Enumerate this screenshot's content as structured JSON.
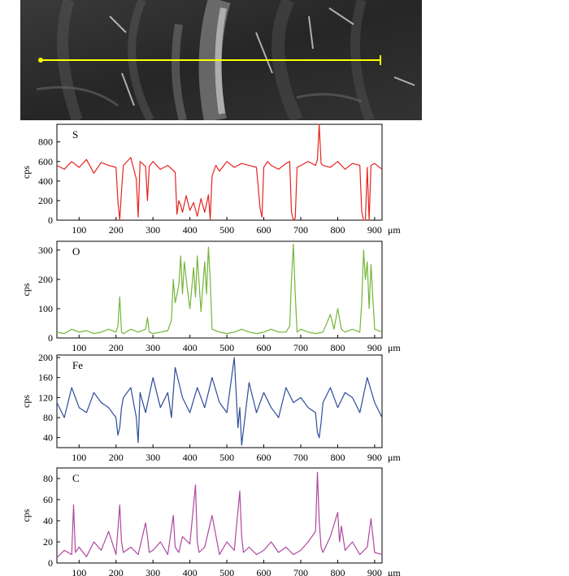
{
  "image": {
    "name": "sem-micrograph",
    "scan_line_color": "#ffff00"
  },
  "x_unit": "μm",
  "chart_data": [
    {
      "type": "line",
      "element": "S",
      "ylabel": "cps",
      "color": "#e52420",
      "xlim": [
        40,
        920
      ],
      "ylim": [
        0,
        980
      ],
      "xticks": [
        100,
        200,
        300,
        400,
        500,
        600,
        700,
        800,
        900
      ],
      "yticks": [
        0,
        200,
        400,
        600,
        800
      ],
      "x": [
        40,
        60,
        80,
        100,
        120,
        140,
        160,
        180,
        200,
        205,
        210,
        215,
        220,
        240,
        255,
        260,
        265,
        280,
        285,
        290,
        300,
        320,
        340,
        360,
        365,
        370,
        375,
        380,
        390,
        400,
        410,
        420,
        430,
        440,
        450,
        455,
        460,
        470,
        480,
        500,
        520,
        540,
        560,
        580,
        590,
        595,
        600,
        610,
        620,
        640,
        660,
        670,
        675,
        680,
        685,
        690,
        700,
        720,
        740,
        745,
        750,
        755,
        760,
        780,
        800,
        820,
        840,
        860,
        865,
        870,
        875,
        880,
        885,
        890,
        900,
        920
      ],
      "y": [
        560,
        520,
        600,
        540,
        620,
        480,
        590,
        560,
        540,
        200,
        0,
        300,
        560,
        640,
        420,
        30,
        600,
        550,
        200,
        550,
        600,
        520,
        560,
        490,
        60,
        200,
        150,
        80,
        250,
        100,
        180,
        40,
        220,
        80,
        260,
        10,
        450,
        560,
        500,
        600,
        540,
        580,
        560,
        540,
        120,
        30,
        540,
        600,
        560,
        520,
        580,
        600,
        80,
        0,
        20,
        540,
        560,
        600,
        560,
        620,
        980,
        580,
        560,
        540,
        600,
        520,
        580,
        560,
        90,
        0,
        0,
        540,
        0,
        560,
        580,
        520
      ]
    },
    {
      "type": "line",
      "element": "O",
      "ylabel": "cps",
      "color": "#74b53a",
      "xlim": [
        40,
        920
      ],
      "ylim": [
        0,
        330
      ],
      "xticks": [
        100,
        200,
        300,
        400,
        500,
        600,
        700,
        800,
        900
      ],
      "yticks": [
        0,
        100,
        200,
        300
      ],
      "x": [
        40,
        60,
        80,
        100,
        120,
        140,
        160,
        180,
        200,
        205,
        210,
        215,
        220,
        240,
        260,
        280,
        285,
        290,
        300,
        320,
        340,
        350,
        355,
        360,
        370,
        375,
        380,
        385,
        390,
        400,
        410,
        415,
        420,
        430,
        440,
        445,
        450,
        455,
        460,
        480,
        500,
        520,
        540,
        560,
        580,
        600,
        620,
        640,
        660,
        670,
        675,
        680,
        685,
        690,
        700,
        720,
        740,
        760,
        780,
        790,
        800,
        810,
        820,
        840,
        860,
        865,
        870,
        875,
        880,
        885,
        890,
        900,
        920
      ],
      "y": [
        20,
        15,
        30,
        20,
        25,
        15,
        20,
        30,
        20,
        40,
        140,
        20,
        15,
        30,
        20,
        30,
        70,
        20,
        15,
        20,
        25,
        60,
        200,
        120,
        180,
        280,
        150,
        260,
        200,
        100,
        240,
        140,
        280,
        90,
        260,
        150,
        310,
        200,
        30,
        20,
        15,
        20,
        30,
        20,
        15,
        20,
        30,
        20,
        20,
        40,
        200,
        320,
        150,
        20,
        30,
        20,
        15,
        20,
        80,
        30,
        100,
        30,
        20,
        30,
        20,
        120,
        300,
        200,
        260,
        100,
        250,
        30,
        20
      ]
    },
    {
      "type": "line",
      "element": "Fe",
      "ylabel": "cps",
      "color": "#2e4b9b",
      "xlim": [
        40,
        920
      ],
      "ylim": [
        20,
        205
      ],
      "xticks": [
        100,
        200,
        300,
        400,
        500,
        600,
        700,
        800,
        900
      ],
      "yticks": [
        40,
        80,
        120,
        160,
        200
      ],
      "x": [
        40,
        60,
        80,
        100,
        120,
        140,
        160,
        180,
        200,
        205,
        210,
        215,
        220,
        240,
        255,
        260,
        265,
        280,
        300,
        320,
        340,
        350,
        360,
        380,
        400,
        420,
        440,
        460,
        480,
        500,
        520,
        525,
        530,
        535,
        540,
        560,
        580,
        600,
        620,
        640,
        660,
        680,
        700,
        720,
        740,
        745,
        750,
        755,
        760,
        780,
        800,
        820,
        840,
        860,
        880,
        900,
        920
      ],
      "y": [
        110,
        80,
        140,
        100,
        90,
        130,
        110,
        100,
        80,
        45,
        60,
        100,
        120,
        140,
        80,
        30,
        130,
        90,
        160,
        100,
        130,
        80,
        180,
        120,
        90,
        140,
        100,
        160,
        110,
        90,
        200,
        130,
        60,
        100,
        25,
        150,
        90,
        130,
        100,
        80,
        140,
        110,
        120,
        100,
        90,
        50,
        40,
        70,
        110,
        140,
        100,
        130,
        120,
        90,
        160,
        110,
        80
      ]
    },
    {
      "type": "line",
      "element": "C",
      "ylabel": "cps",
      "color": "#b0479f",
      "xlim": [
        40,
        920
      ],
      "ylim": [
        0,
        90
      ],
      "xticks": [
        100,
        200,
        300,
        400,
        500,
        600,
        700,
        800,
        900
      ],
      "yticks": [
        0,
        20,
        40,
        60,
        80
      ],
      "x": [
        40,
        60,
        80,
        85,
        90,
        100,
        120,
        140,
        160,
        180,
        200,
        210,
        215,
        220,
        240,
        260,
        280,
        285,
        290,
        300,
        320,
        340,
        355,
        360,
        370,
        380,
        400,
        415,
        420,
        425,
        440,
        460,
        480,
        500,
        520,
        535,
        540,
        545,
        560,
        580,
        600,
        620,
        640,
        660,
        680,
        700,
        720,
        740,
        745,
        750,
        755,
        760,
        780,
        800,
        805,
        810,
        820,
        840,
        860,
        880,
        890,
        900,
        920
      ],
      "y": [
        5,
        12,
        8,
        55,
        10,
        15,
        6,
        20,
        12,
        30,
        8,
        55,
        20,
        10,
        15,
        8,
        38,
        25,
        10,
        12,
        20,
        8,
        45,
        15,
        10,
        25,
        18,
        74,
        20,
        10,
        15,
        45,
        8,
        20,
        12,
        68,
        25,
        10,
        15,
        8,
        12,
        20,
        10,
        15,
        8,
        12,
        20,
        30,
        86,
        40,
        15,
        10,
        25,
        48,
        20,
        35,
        12,
        20,
        8,
        15,
        42,
        10,
        8
      ]
    }
  ]
}
